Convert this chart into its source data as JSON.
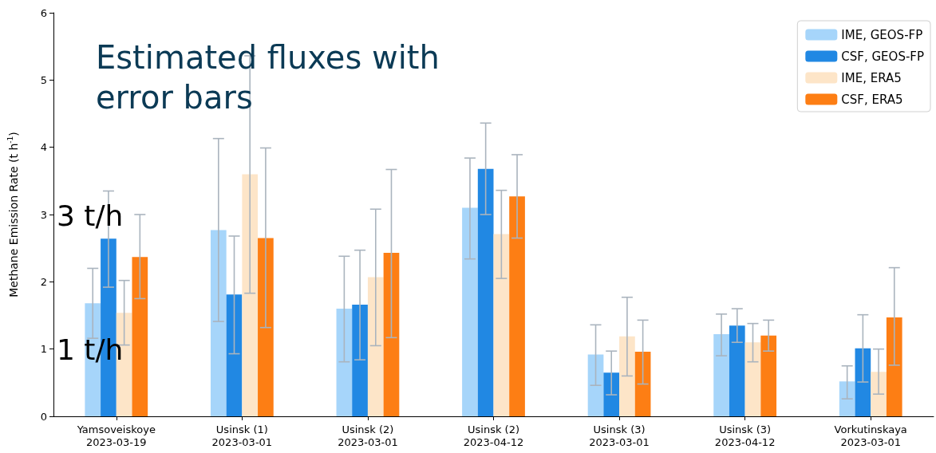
{
  "chart_data": {
    "type": "bar",
    "title": "Estimated fluxes with error bars",
    "ylabel": "Methane Emission Rate (t h$^{-1}$)",
    "categories": [
      "Yamsoveiskoye\n2023-03-19",
      "Usinsk (1)\n2023-03-01",
      "Usinsk (2)\n2023-03-01",
      "Usinsk (2)\n2023-04-12",
      "Usinsk (3)\n2023-03-01",
      "Usinsk (3)\n2023-04-12",
      "Vorkutinskaya\n2023-03-01"
    ],
    "series": [
      {
        "name": "IME, GEOS-FP",
        "color": "#a6d5fa",
        "values": [
          1.68,
          2.77,
          1.6,
          3.1,
          0.92,
          1.22,
          0.52
        ],
        "errors": [
          [
            1.16,
            2.2
          ],
          [
            1.41,
            4.13
          ],
          [
            0.81,
            2.38
          ],
          [
            2.34,
            3.84
          ],
          [
            0.46,
            1.36
          ],
          [
            0.9,
            1.52
          ],
          [
            0.26,
            0.75
          ]
        ]
      },
      {
        "name": "CSF, GEOS-FP",
        "color": "#2188e3",
        "values": [
          2.64,
          1.81,
          1.66,
          3.68,
          0.65,
          1.35,
          1.01
        ],
        "errors": [
          [
            1.92,
            3.35
          ],
          [
            0.93,
            2.68
          ],
          [
            0.84,
            2.47
          ],
          [
            3.0,
            4.36
          ],
          [
            0.32,
            0.97
          ],
          [
            1.1,
            1.6
          ],
          [
            0.51,
            1.51
          ]
        ]
      },
      {
        "name": "IME, ERA5",
        "color": "#fde5c8",
        "values": [
          1.54,
          3.6,
          2.07,
          2.71,
          1.19,
          1.1,
          0.66
        ],
        "errors": [
          [
            1.06,
            2.02
          ],
          [
            1.83,
            5.36
          ],
          [
            1.05,
            3.08
          ],
          [
            2.05,
            3.36
          ],
          [
            0.6,
            1.77
          ],
          [
            0.81,
            1.38
          ],
          [
            0.33,
            1.0
          ]
        ]
      },
      {
        "name": "CSF, ERA5",
        "color": "#fd7e14",
        "values": [
          2.37,
          2.65,
          2.43,
          3.27,
          0.96,
          1.2,
          1.47
        ],
        "errors": [
          [
            1.75,
            3.0
          ],
          [
            1.32,
            3.99
          ],
          [
            1.17,
            3.67
          ],
          [
            2.65,
            3.89
          ],
          [
            0.48,
            1.43
          ],
          [
            0.97,
            1.43
          ],
          [
            0.76,
            2.21
          ]
        ]
      }
    ],
    "ylim": [
      0,
      6
    ],
    "yticks": [
      0,
      1,
      2,
      3,
      4,
      5,
      6
    ],
    "annotations": [
      "3 t/h",
      "1 t/h"
    ],
    "legend": "top right",
    "grid": false
  }
}
